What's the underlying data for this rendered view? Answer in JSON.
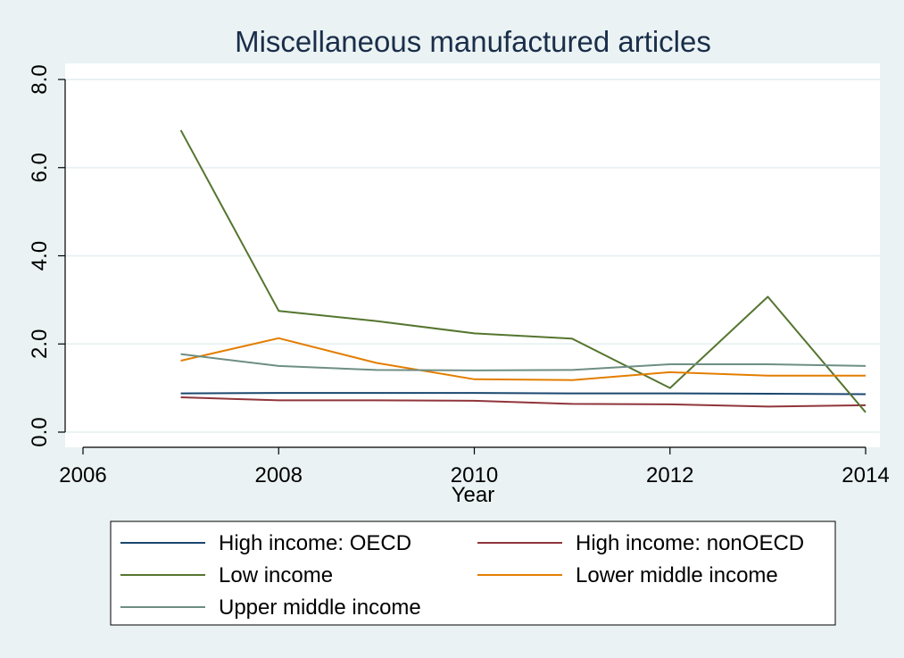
{
  "chart_data": {
    "type": "line",
    "title": "Miscellaneous manufactured articles",
    "xlabel": "Year",
    "ylabel": "",
    "xlim": [
      2006,
      2014
    ],
    "ylim": [
      0,
      8
    ],
    "x_ticks": [
      2006,
      2008,
      2010,
      2012,
      2014
    ],
    "y_ticks": [
      0,
      2,
      4,
      6,
      8
    ],
    "y_tick_labels": [
      "0.0",
      "2.0",
      "4.0",
      "6.0",
      "8.0"
    ],
    "grid": "horizontal",
    "legend_position": "bottom",
    "x": [
      2007,
      2008,
      2009,
      2010,
      2011,
      2012,
      2013,
      2014
    ],
    "series": [
      {
        "name": "High income: OECD",
        "color": "#1a476f",
        "values": [
          0.88,
          0.89,
          0.89,
          0.89,
          0.88,
          0.88,
          0.87,
          0.86
        ]
      },
      {
        "name": "High income: nonOECD",
        "color": "#90353b",
        "values": [
          0.79,
          0.72,
          0.72,
          0.71,
          0.64,
          0.63,
          0.58,
          0.61
        ]
      },
      {
        "name": "Low income",
        "color": "#55752f",
        "values": [
          6.85,
          2.75,
          2.52,
          2.24,
          2.12,
          1.0,
          3.07,
          0.45
        ]
      },
      {
        "name": "Lower middle income",
        "color": "#e37e00",
        "values": [
          1.62,
          2.13,
          1.57,
          1.2,
          1.18,
          1.36,
          1.28,
          1.28
        ]
      },
      {
        "name": "Upper middle income",
        "color": "#6e8e84",
        "values": [
          1.77,
          1.5,
          1.41,
          1.4,
          1.41,
          1.54,
          1.54,
          1.5
        ]
      }
    ]
  }
}
